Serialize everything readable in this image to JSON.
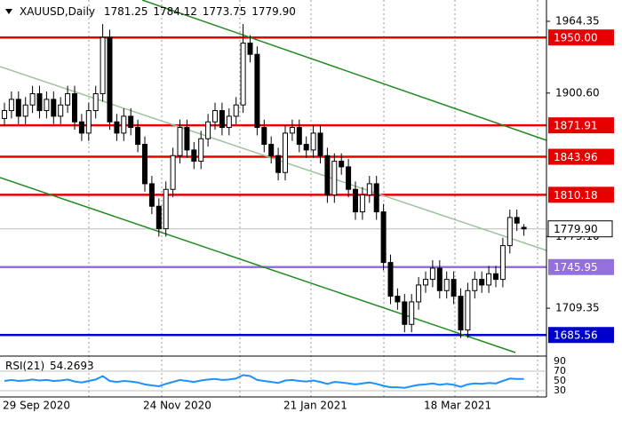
{
  "chart_data": {
    "type": "candlestick",
    "title": "XAUUSD,Daily",
    "quote": [
      "1781.25",
      "1784.12",
      "1773.75",
      "1779.90"
    ],
    "categories": [
      "29 Sep 2020",
      null,
      null,
      null,
      null,
      null,
      null,
      null,
      null,
      null,
      null,
      null,
      null,
      null,
      null,
      null,
      null,
      null,
      null,
      null,
      "24 Nov 2020",
      null,
      null,
      null,
      null,
      null,
      null,
      null,
      null,
      null,
      null,
      null,
      null,
      null,
      null,
      null,
      null,
      null,
      null,
      null,
      "21 Jan 2021",
      null,
      null,
      null,
      null,
      null,
      null,
      null,
      null,
      null,
      null,
      null,
      null,
      null,
      null,
      null,
      null,
      null,
      null,
      null,
      "18 Mar 2021",
      null,
      null,
      null,
      null,
      null,
      null,
      null,
      null,
      null,
      null,
      null,
      null,
      null,
      null
    ],
    "open": [
      1878,
      1885,
      1895,
      1880,
      1890,
      1900,
      1885,
      1895,
      1880,
      1890,
      1900,
      1875,
      1865,
      1885,
      1900,
      1950,
      1875,
      1865,
      1880,
      1870,
      1855,
      1820,
      1800,
      1780,
      1815,
      1845,
      1870,
      1850,
      1840,
      1860,
      1875,
      1885,
      1870,
      1880,
      1890,
      1945,
      1935,
      1870,
      1855,
      1845,
      1830,
      1865,
      1870,
      1855,
      1850,
      1865,
      1845,
      1810,
      1840,
      1835,
      1815,
      1795,
      1810,
      1820,
      1795,
      1750,
      1720,
      1715,
      1695,
      1715,
      1730,
      1735,
      1745,
      1725,
      1735,
      1720,
      1690,
      1725,
      1735,
      1730,
      1740,
      1735,
      1765,
      1790,
      1781.25
    ],
    "high": [
      1892,
      1902,
      1902,
      1897,
      1907,
      1907,
      1902,
      1902,
      1897,
      1907,
      1907,
      1882,
      1892,
      1907,
      1962,
      1957,
      1882,
      1887,
      1887,
      1877,
      1862,
      1827,
      1807,
      1822,
      1852,
      1877,
      1877,
      1857,
      1867,
      1882,
      1892,
      1892,
      1887,
      1897,
      1962,
      1952,
      1942,
      1877,
      1862,
      1852,
      1872,
      1877,
      1877,
      1862,
      1872,
      1872,
      1852,
      1847,
      1847,
      1842,
      1822,
      1817,
      1827,
      1827,
      1802,
      1757,
      1727,
      1722,
      1722,
      1737,
      1742,
      1752,
      1752,
      1742,
      1742,
      1727,
      1732,
      1742,
      1742,
      1747,
      1747,
      1772,
      1797,
      1797,
      1784.12
    ],
    "low": [
      1871,
      1878,
      1873,
      1873,
      1883,
      1878,
      1878,
      1873,
      1873,
      1883,
      1868,
      1858,
      1858,
      1878,
      1893,
      1868,
      1858,
      1858,
      1863,
      1848,
      1813,
      1793,
      1773,
      1773,
      1808,
      1838,
      1843,
      1833,
      1833,
      1853,
      1868,
      1863,
      1863,
      1873,
      1883,
      1928,
      1863,
      1848,
      1838,
      1823,
      1823,
      1858,
      1848,
      1843,
      1843,
      1838,
      1803,
      1803,
      1828,
      1808,
      1788,
      1788,
      1803,
      1788,
      1743,
      1713,
      1708,
      1688,
      1688,
      1708,
      1723,
      1728,
      1718,
      1718,
      1713,
      1683,
      1683,
      1718,
      1723,
      1723,
      1728,
      1728,
      1758,
      1778,
      1773.75
    ],
    "close": [
      1885,
      1895,
      1880,
      1890,
      1900,
      1885,
      1895,
      1880,
      1890,
      1900,
      1875,
      1865,
      1885,
      1900,
      1950,
      1875,
      1865,
      1880,
      1870,
      1855,
      1820,
      1800,
      1780,
      1815,
      1845,
      1870,
      1850,
      1840,
      1860,
      1875,
      1885,
      1870,
      1880,
      1890,
      1945,
      1935,
      1870,
      1855,
      1845,
      1830,
      1865,
      1870,
      1855,
      1850,
      1865,
      1845,
      1810,
      1840,
      1835,
      1815,
      1795,
      1810,
      1820,
      1795,
      1750,
      1720,
      1715,
      1695,
      1715,
      1730,
      1735,
      1745,
      1725,
      1735,
      1720,
      1690,
      1725,
      1735,
      1730,
      1740,
      1735,
      1765,
      1790,
      1785,
      1779.9
    ],
    "ylim": [
      1667.6,
      1983.3
    ],
    "yticks": [
      1964.35,
      {
        "value": 1900.6,
        "label": "1900.60"
      },
      {
        "value": 1773.1,
        "label": "1773.10"
      },
      1709.35
    ],
    "levels": [
      {
        "price": 1950,
        "label": "1950.00",
        "color": "#e60000"
      },
      {
        "price": 1871.91,
        "color": "#e60000"
      },
      {
        "price": 1843.96,
        "color": "#e60000"
      },
      {
        "price": 1810.18,
        "color": "#e60000"
      },
      {
        "price": 1745.95,
        "color": "#9370db"
      },
      {
        "price": 1685.56,
        "color": "#0000cd"
      }
    ],
    "last": {
      "price": 1779.9,
      "label": "1779.90"
    },
    "rsi": {
      "name": "RSI(21)",
      "color": "#1e90ff",
      "values": [
        50,
        52,
        50,
        51,
        53,
        51,
        52,
        50,
        51,
        53,
        49,
        47,
        50,
        53,
        60,
        50,
        48,
        50,
        49,
        47,
        43,
        41,
        39,
        44,
        48,
        52,
        50,
        48,
        51,
        53,
        54,
        52,
        53,
        55,
        62,
        60,
        52,
        50,
        48,
        46,
        51,
        52,
        50,
        49,
        51,
        48,
        44,
        48,
        47,
        45,
        43,
        45,
        47,
        44,
        40,
        37,
        37,
        36,
        39,
        42,
        43,
        45,
        42,
        44,
        42,
        38,
        43,
        45,
        44,
        46,
        45,
        50,
        55,
        54,
        54.2693
      ],
      "ylim": [
        20.9,
        97.3
      ],
      "yticks": [
        90,
        70,
        50,
        30
      ],
      "levels": [
        70,
        30
      ]
    }
  }
}
